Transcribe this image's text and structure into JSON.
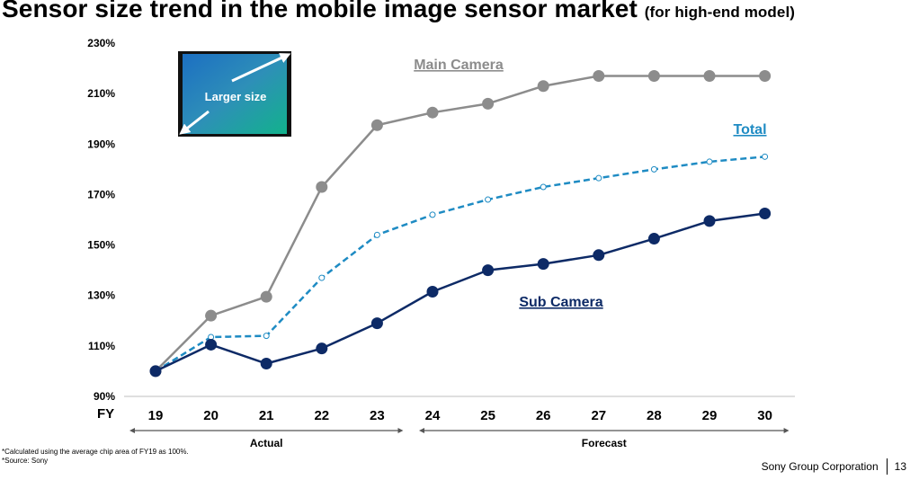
{
  "title": "Sensor size trend in the mobile image sensor market",
  "subtitle": "(for high-end model)",
  "chart_data": {
    "type": "line",
    "xlabel": "FY",
    "ylabel": "",
    "categories": [
      "19",
      "20",
      "21",
      "22",
      "23",
      "24",
      "25",
      "26",
      "27",
      "28",
      "29",
      "30"
    ],
    "ylim": [
      90,
      230
    ],
    "yticks": [
      90,
      110,
      130,
      150,
      170,
      190,
      210,
      230
    ],
    "ytick_labels": [
      "90%",
      "110%",
      "130%",
      "150%",
      "170%",
      "190%",
      "210%",
      "230%"
    ],
    "grid": false,
    "series": [
      {
        "name": "Main Camera",
        "color": "#8c8c8c",
        "style": "solid",
        "values": [
          100,
          122,
          129.5,
          173,
          197.5,
          202.5,
          206,
          213,
          217,
          217,
          217,
          217
        ]
      },
      {
        "name": "Total",
        "color": "#1e8bc3",
        "style": "dashed",
        "values": [
          100,
          113.5,
          114,
          137,
          154,
          162,
          168,
          173,
          176.5,
          180,
          183,
          185
        ]
      },
      {
        "name": "Sub Camera",
        "color": "#0d2a66",
        "style": "solid",
        "values": [
          100,
          110.5,
          103,
          109,
          119,
          131.5,
          140,
          142.5,
          146,
          152.5,
          159.5,
          162.5
        ]
      }
    ],
    "periods": [
      {
        "label": "Actual",
        "from": "19",
        "to": "23"
      },
      {
        "label": "Forecast",
        "from": "24",
        "to": "30"
      }
    ],
    "inset_label": "Larger size"
  },
  "footnotes": [
    "*Calculated using the average chip area of FY19 as 100%.",
    "*Source: Sony"
  ],
  "footer": {
    "company": "Sony Group Corporation",
    "page_number": "13"
  }
}
